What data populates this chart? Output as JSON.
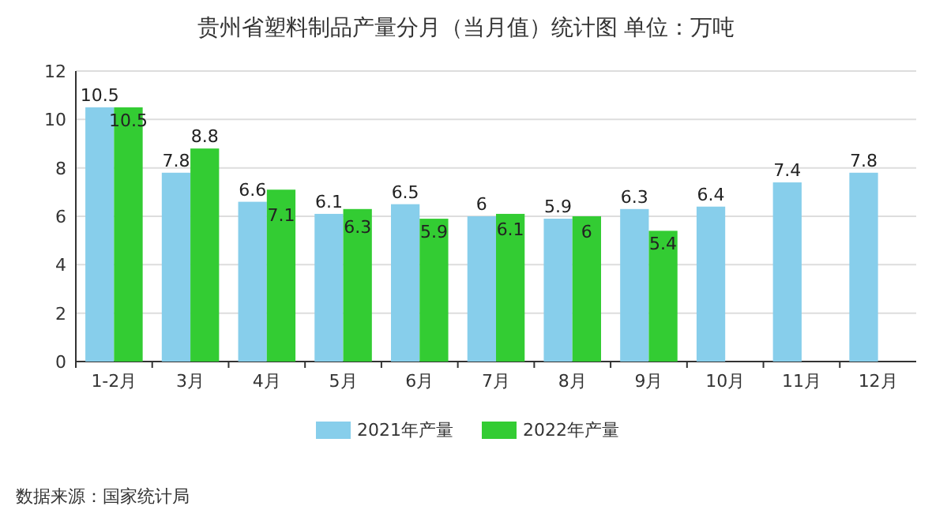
{
  "chart_data": {
    "type": "bar",
    "title": "贵州省塑料制品产量分月（当月值）统计图 单位：万吨",
    "categories": [
      "1-2月",
      "3月",
      "4月",
      "5月",
      "6月",
      "7月",
      "8月",
      "9月",
      "10月",
      "11月",
      "12月"
    ],
    "series": [
      {
        "name": "2021年产量",
        "color": "#87ceeb",
        "values": [
          10.5,
          7.8,
          6.6,
          6.1,
          6.5,
          6,
          5.9,
          6.3,
          6.4,
          7.4,
          7.8
        ]
      },
      {
        "name": "2022年产量",
        "color": "#33cc33",
        "values": [
          10.5,
          8.8,
          7.1,
          6.3,
          5.9,
          6.1,
          6,
          5.4,
          null,
          null,
          null
        ]
      }
    ],
    "ylim": [
      0,
      12
    ],
    "yticks": [
      0,
      2,
      4,
      6,
      8,
      10,
      12
    ],
    "grid": "y",
    "legend": "bottom",
    "data_labels": true,
    "annotations": [
      "数据来源：国家统计局"
    ]
  }
}
